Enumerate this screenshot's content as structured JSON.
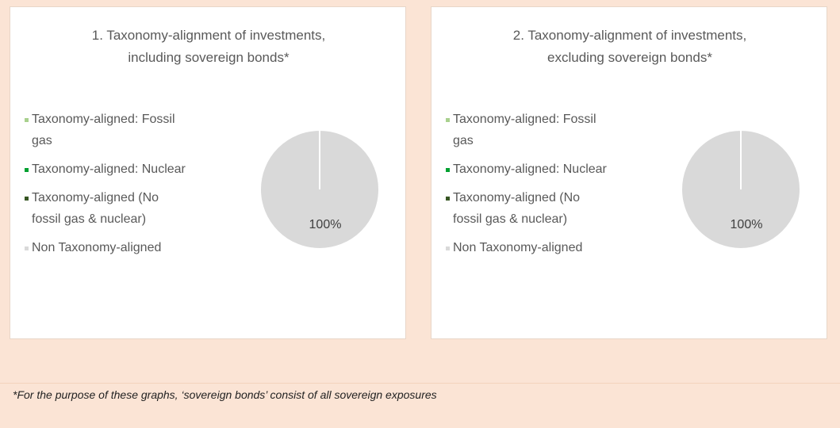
{
  "chart_data": [
    {
      "type": "pie",
      "title": "1. Taxonomy-alignment of investments, including sovereign bonds*",
      "categories": [
        "Taxonomy-aligned: Fossil gas",
        "Taxonomy-aligned: Nuclear",
        "Taxonomy-aligned (No fossil gas & nuclear)",
        "Non Taxonomy-aligned"
      ],
      "values": [
        0,
        0,
        0,
        100
      ],
      "value_labels": [
        null,
        null,
        null,
        "100%"
      ],
      "colors": [
        "#a9d18e",
        "#00a030",
        "#375623",
        "#d9d9d9"
      ]
    },
    {
      "type": "pie",
      "title": "2. Taxonomy-alignment of investments, excluding sovereign bonds*",
      "categories": [
        "Taxonomy-aligned: Fossil gas",
        "Taxonomy-aligned: Nuclear",
        "Taxonomy-aligned (No fossil gas & nuclear)",
        "Non Taxonomy-aligned"
      ],
      "values": [
        0,
        0,
        0,
        100
      ],
      "value_labels": [
        null,
        null,
        null,
        "100%"
      ],
      "colors": [
        "#a9d18e",
        "#00a030",
        "#375623",
        "#d9d9d9"
      ]
    }
  ],
  "footnote": "*For the purpose of these graphs, ‘sovereign bonds’ consist of  all sovereign exposures"
}
